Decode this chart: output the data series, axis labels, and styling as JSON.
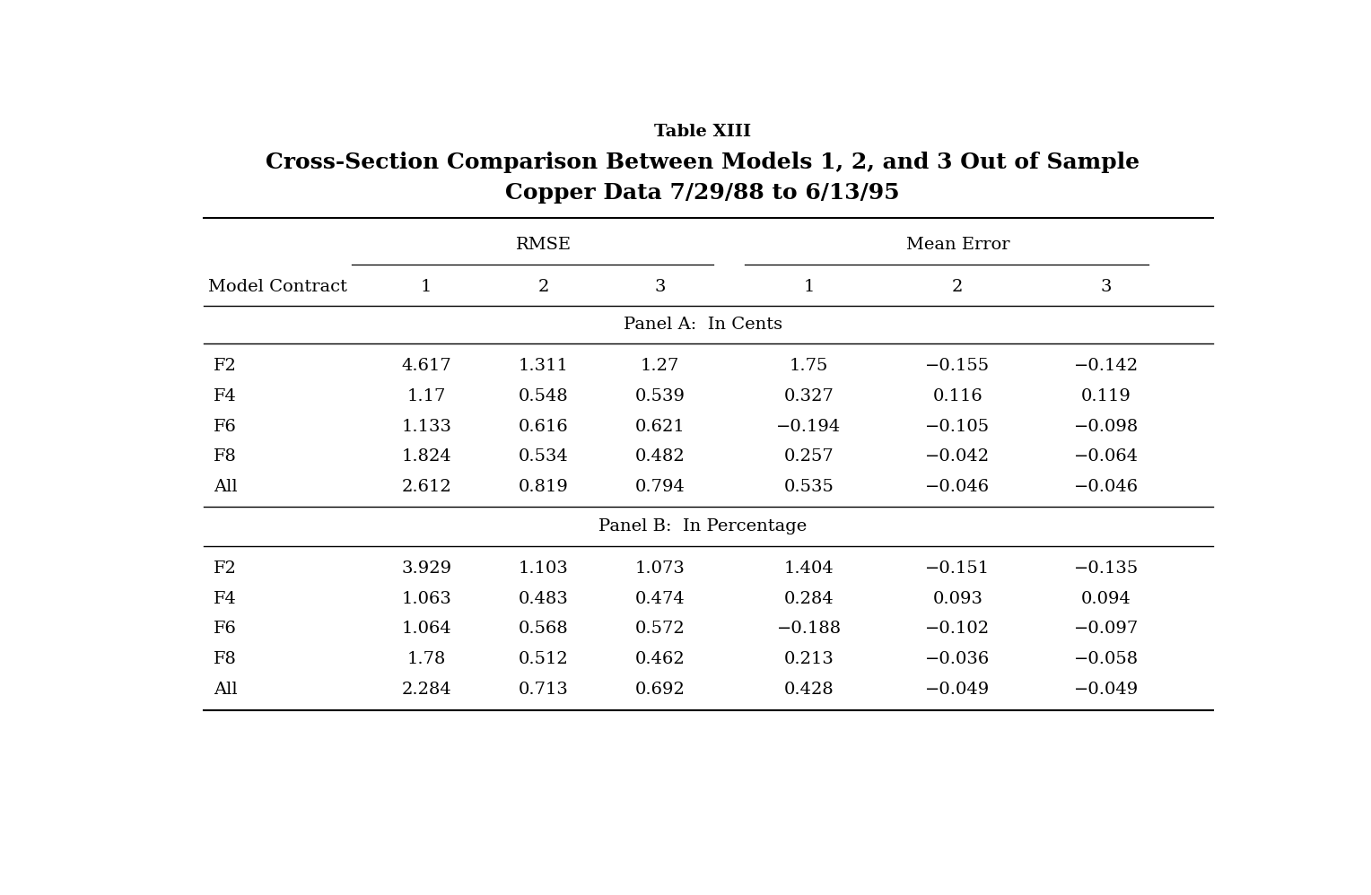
{
  "title_line1": "Table XIII",
  "title_line2": "Cross-Section Comparison Between Models 1, 2, and 3 Out of Sample",
  "title_line3": "Copper Data 7/29/88 to 6/13/95",
  "group_header_rmse": "RMSE",
  "group_header_me": "Mean Error",
  "col_header_model": "Model Contract",
  "col_headers_models": [
    "1",
    "2",
    "3",
    "1",
    "2",
    "3"
  ],
  "panel_a_label": "Panel A:  In Cents",
  "panel_b_label": "Panel B:  In Percentage",
  "panel_a_rows": [
    [
      "F2",
      "4.617",
      "1.311",
      "1.27",
      "1.75",
      "−0.155",
      "−0.142"
    ],
    [
      "F4",
      "1.17",
      "0.548",
      "0.539",
      "0.327",
      "0.116",
      "0.119"
    ],
    [
      "F6",
      "1.133",
      "0.616",
      "0.621",
      "−0.194",
      "−0.105",
      "−0.098"
    ],
    [
      "F8",
      "1.824",
      "0.534",
      "0.482",
      "0.257",
      "−0.042",
      "−0.064"
    ],
    [
      "All",
      "2.612",
      "0.819",
      "0.794",
      "0.535",
      "−0.046",
      "−0.046"
    ]
  ],
  "panel_b_rows": [
    [
      "F2",
      "3.929",
      "1.103",
      "1.073",
      "1.404",
      "−0.151",
      "−0.135"
    ],
    [
      "F4",
      "1.063",
      "0.483",
      "0.474",
      "0.284",
      "0.093",
      "0.094"
    ],
    [
      "F6",
      "1.064",
      "0.568",
      "0.572",
      "−0.188",
      "−0.102",
      "−0.097"
    ],
    [
      "F8",
      "1.78",
      "0.512",
      "0.462",
      "0.213",
      "−0.036",
      "−0.058"
    ],
    [
      "All",
      "2.284",
      "0.713",
      "0.692",
      "0.428",
      "−0.049",
      "−0.049"
    ]
  ],
  "bg_color": "#ffffff",
  "text_color": "#000000",
  "line_color": "#000000",
  "title1_fontsize": 14,
  "title2_fontsize": 18,
  "header_fontsize": 14,
  "cell_fontsize": 14,
  "panel_fontsize": 14
}
